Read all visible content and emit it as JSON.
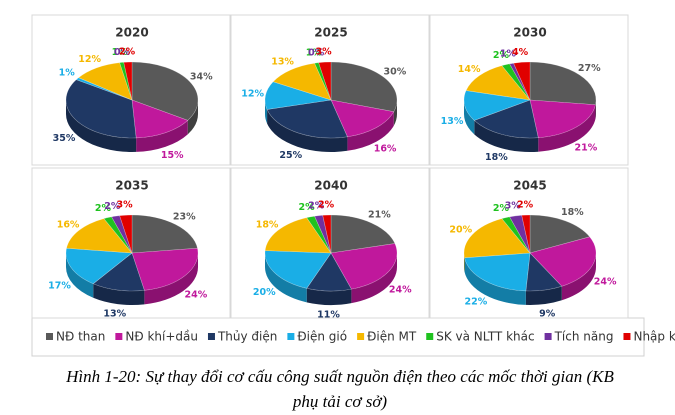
{
  "chart_data": {
    "type": "pie",
    "categories": [
      "NĐ than",
      "NĐ khí+dầu",
      "Thủy điện",
      "Điện gió",
      "Điện MT",
      "SK và NLTT khác",
      "Tích năng",
      "Nhập khẩu"
    ],
    "colors": [
      "#595959",
      "#c0189c",
      "#1f3864",
      "#1aaee6",
      "#f5b800",
      "#1fc21f",
      "#7030a0",
      "#e00000"
    ],
    "series": [
      {
        "name": "2020",
        "values": [
          34,
          15,
          35,
          1,
          12,
          1,
          0,
          2
        ],
        "value_labels": [
          "34%",
          "15%",
          "35%",
          "1%",
          "12%",
          "1%",
          "0%",
          "2%"
        ]
      },
      {
        "name": "2025",
        "values": [
          30,
          16,
          25,
          12,
          13,
          1,
          0,
          3
        ],
        "value_labels": [
          "30%",
          "16%",
          "25%",
          "12%",
          "13%",
          "1%",
          "0%",
          "3%"
        ]
      },
      {
        "name": "2030",
        "values": [
          27,
          21,
          18,
          13,
          14,
          2,
          1,
          4
        ],
        "value_labels": [
          "27%",
          "21%",
          "18%",
          "13%",
          "14%",
          "2%",
          "1%",
          "4%"
        ]
      },
      {
        "name": "2035",
        "values": [
          23,
          24,
          13,
          17,
          16,
          2,
          2,
          3
        ],
        "value_labels": [
          "23%",
          "24%",
          "13%",
          "17%",
          "16%",
          "2%",
          "2%",
          "3%"
        ]
      },
      {
        "name": "2040",
        "values": [
          21,
          24,
          11,
          20,
          18,
          2,
          2,
          2
        ],
        "value_labels": [
          "21%",
          "24%",
          "11%",
          "20%",
          "18%",
          "2%",
          "2%",
          "2%"
        ]
      },
      {
        "name": "2045",
        "values": [
          18,
          24,
          9,
          22,
          20,
          2,
          3,
          2
        ],
        "value_labels": [
          "18%",
          "24%",
          "9%",
          "22%",
          "20%",
          "2%",
          "3%",
          "2%"
        ]
      }
    ],
    "caption": "Hình 1-20: Sự thay đổi cơ cấu công suất nguồn điện theo các mốc thời gian (KB phụ tải cơ sở)"
  }
}
